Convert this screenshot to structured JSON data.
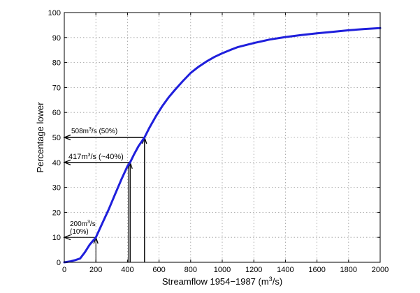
{
  "chart_data": {
    "type": "line",
    "title": "",
    "xlabel": "Streamflow 1954−1987 (m",
    "xlabel_sup": "3",
    "xlabel_tail": "/s)",
    "ylabel": "Percentage lower",
    "xlim": [
      0,
      2000
    ],
    "ylim": [
      0,
      100
    ],
    "xticks": [
      0,
      200,
      400,
      600,
      800,
      1000,
      1200,
      1400,
      1600,
      1800,
      2000
    ],
    "yticks": [
      0,
      10,
      20,
      30,
      40,
      50,
      60,
      70,
      80,
      90,
      100
    ],
    "grid": true,
    "series": [
      {
        "color": "#1f1fdc",
        "x": [
          0,
          40,
          70,
          100,
          130,
          160,
          200,
          240,
          280,
          320,
          360,
          400,
          417,
          440,
          470,
          508,
          540,
          580,
          620,
          660,
          700,
          750,
          800,
          850,
          900,
          950,
          1000,
          1050,
          1100,
          1200,
          1300,
          1400,
          1500,
          1600,
          1700,
          1800,
          1900,
          2000
        ],
        "y": [
          0,
          0.4,
          0.9,
          1.5,
          4,
          7,
          10,
          15.5,
          21,
          27,
          33,
          38.5,
          40,
          43,
          46.5,
          50,
          54,
          58.5,
          62.5,
          66,
          69,
          72.5,
          75.8,
          78.3,
          80.4,
          82.2,
          83.7,
          85,
          86.2,
          87.8,
          89.2,
          90.2,
          91,
          91.7,
          92.3,
          92.9,
          93.4,
          93.8
        ]
      }
    ],
    "annotations": [
      {
        "x": 200,
        "y": 10,
        "line1_pre": "200m",
        "line1_sup": "3",
        "line1_post": "/s",
        "line2": "(10%)"
      },
      {
        "x": 417,
        "y": 40,
        "line1_pre": "417m",
        "line1_sup": "3",
        "line1_post": "/s (~40%)"
      },
      {
        "x": 508,
        "y": 50,
        "line1_pre": "508m",
        "line1_sup": "3",
        "line1_post": "/s (50%)"
      }
    ]
  }
}
